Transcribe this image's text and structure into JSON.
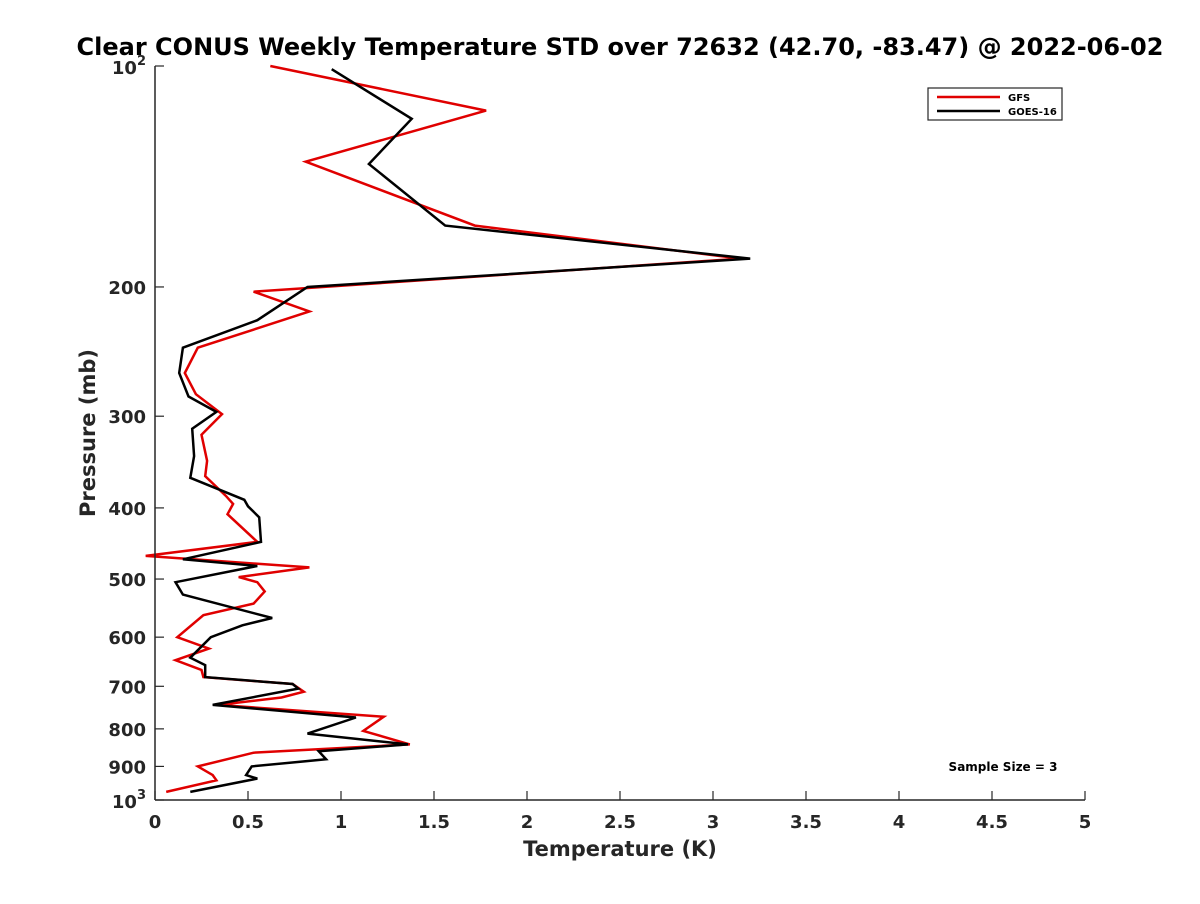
{
  "chart_data": {
    "type": "line",
    "title": "Clear CONUS Weekly Temperature STD over 72632 (42.70, -83.47) @ 2022-06-02",
    "xlabel": "Temperature (K)",
    "ylabel": "Pressure (mb)",
    "xlim": [
      0,
      5
    ],
    "ylim": [
      1000,
      100
    ],
    "y_scale": "log",
    "y_reversed": true,
    "grid": false,
    "legend_position": "top-right",
    "x_ticks": [
      "0",
      "0.5",
      "1",
      "1.5",
      "2",
      "2.5",
      "3",
      "3.5",
      "4",
      "4.5",
      "5"
    ],
    "x_tick_values": [
      0,
      0.5,
      1,
      1.5,
      2,
      2.5,
      3,
      3.5,
      4,
      4.5,
      5
    ],
    "y_ticks": [
      {
        "value": 100,
        "base": "10",
        "sup": "2",
        "label": ""
      },
      {
        "value": 200,
        "label": "200"
      },
      {
        "value": 300,
        "label": "300"
      },
      {
        "value": 400,
        "label": "400"
      },
      {
        "value": 500,
        "label": "500"
      },
      {
        "value": 600,
        "label": "600"
      },
      {
        "value": 700,
        "label": "700"
      },
      {
        "value": 800,
        "label": "800"
      },
      {
        "value": 900,
        "label": "900"
      },
      {
        "value": 1000,
        "base": "10",
        "sup": "3",
        "label": ""
      }
    ],
    "annotation": "Sample Size = 3",
    "series": [
      {
        "name": "GFS",
        "color": "#e00000",
        "points": [
          [
            0.62,
            100
          ],
          [
            1.78,
            115
          ],
          [
            0.81,
            135
          ],
          [
            1.72,
            165
          ],
          [
            3.15,
            183
          ],
          [
            0.53,
            203
          ],
          [
            0.83,
            216
          ],
          [
            0.23,
            242
          ],
          [
            0.16,
            262
          ],
          [
            0.22,
            280
          ],
          [
            0.36,
            298
          ],
          [
            0.25,
            318
          ],
          [
            0.28,
            345
          ],
          [
            0.27,
            362
          ],
          [
            0.38,
            385
          ],
          [
            0.42,
            395
          ],
          [
            0.39,
            408
          ],
          [
            0.55,
            445
          ],
          [
            -0.05,
            465
          ],
          [
            0.83,
            482
          ],
          [
            0.45,
            497
          ],
          [
            0.55,
            505
          ],
          [
            0.59,
            520
          ],
          [
            0.53,
            540
          ],
          [
            0.26,
            560
          ],
          [
            0.12,
            600
          ],
          [
            0.29,
            622
          ],
          [
            0.11,
            645
          ],
          [
            0.25,
            665
          ],
          [
            0.26,
            680
          ],
          [
            0.74,
            695
          ],
          [
            0.8,
            712
          ],
          [
            0.68,
            725
          ],
          [
            0.34,
            742
          ],
          [
            1.23,
            770
          ],
          [
            1.12,
            805
          ],
          [
            1.37,
            840
          ],
          [
            0.53,
            862
          ],
          [
            0.23,
            900
          ],
          [
            0.31,
            925
          ],
          [
            0.33,
            940
          ],
          [
            0.06,
            975
          ]
        ]
      },
      {
        "name": "GOES-16",
        "color": "#000000",
        "points": [
          [
            0.95,
            101
          ],
          [
            1.38,
            118
          ],
          [
            1.15,
            136
          ],
          [
            1.56,
            165
          ],
          [
            3.2,
            183
          ],
          [
            0.82,
            200
          ],
          [
            0.55,
            222
          ],
          [
            0.15,
            242
          ],
          [
            0.13,
            262
          ],
          [
            0.18,
            282
          ],
          [
            0.33,
            296
          ],
          [
            0.2,
            312
          ],
          [
            0.21,
            340
          ],
          [
            0.19,
            364
          ],
          [
            0.48,
            390
          ],
          [
            0.5,
            398
          ],
          [
            0.56,
            412
          ],
          [
            0.57,
            445
          ],
          [
            0.15,
            470
          ],
          [
            0.55,
            480
          ],
          [
            0.11,
            505
          ],
          [
            0.15,
            525
          ],
          [
            0.63,
            565
          ],
          [
            0.47,
            578
          ],
          [
            0.3,
            600
          ],
          [
            0.19,
            640
          ],
          [
            0.27,
            655
          ],
          [
            0.27,
            680
          ],
          [
            0.74,
            695
          ],
          [
            0.77,
            705
          ],
          [
            0.31,
            742
          ],
          [
            1.08,
            772
          ],
          [
            0.82,
            812
          ],
          [
            1.36,
            840
          ],
          [
            0.88,
            858
          ],
          [
            0.92,
            880
          ],
          [
            0.52,
            900
          ],
          [
            0.49,
            925
          ],
          [
            0.55,
            935
          ],
          [
            0.19,
            975
          ]
        ]
      }
    ]
  }
}
